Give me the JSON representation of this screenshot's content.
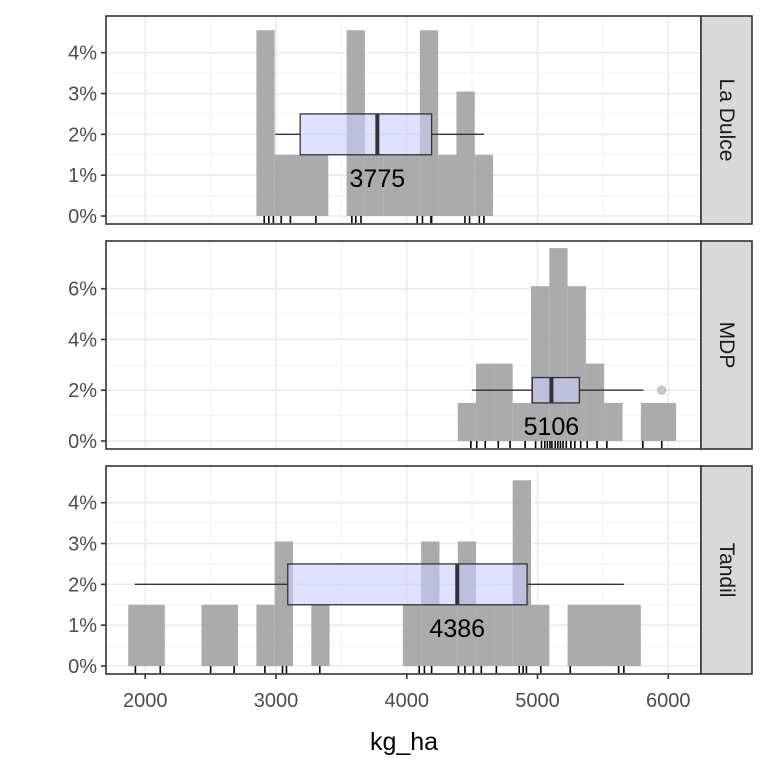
{
  "chart_data": {
    "type": "histogram-boxplot-facets",
    "xlabel": "kg_ha",
    "x_ticks": [
      2000,
      3000,
      4000,
      5000,
      6000
    ],
    "xlim": [
      1700,
      6250
    ],
    "bin_width": 140,
    "grid": true,
    "colors": {
      "bar": "#a6a6a6",
      "box_fill": "#ccccff",
      "box_stroke": "#333333",
      "strip_fill": "#d9d9d9",
      "panel_border": "#333333",
      "grid_major": "#ebebeb",
      "grid_minor": "#f4f4f4"
    },
    "panels": [
      {
        "label": "La Dulce",
        "ylim": [
          0,
          4.85
        ],
        "y_ticks": [
          0,
          1,
          2,
          3,
          4
        ],
        "y_tick_labels": [
          "0%",
          "1%",
          "2%",
          "3%",
          "4%"
        ],
        "bars": [
          {
            "start": 2850,
            "end": 2990,
            "pct": 4.55
          },
          {
            "start": 2990,
            "end": 3400,
            "pct": 1.5
          },
          {
            "start": 3540,
            "end": 3680,
            "pct": 4.55
          },
          {
            "start": 3680,
            "end": 3820,
            "pct": 1.5
          },
          {
            "start": 3820,
            "end": 4100,
            "pct": 1.5
          },
          {
            "start": 4100,
            "end": 4240,
            "pct": 4.55
          },
          {
            "start": 4240,
            "end": 4380,
            "pct": 1.5
          },
          {
            "start": 4380,
            "end": 4520,
            "pct": 3.05
          },
          {
            "start": 4520,
            "end": 4660,
            "pct": 1.5
          }
        ],
        "box": {
          "whisker_low": 2995,
          "q1": 3185,
          "median": 3775,
          "q3": 4190,
          "whisker_high": 4590,
          "outliers": []
        },
        "median_label": "3775",
        "rug": [
          2910,
          2945,
          2980,
          3040,
          3110,
          3305,
          3580,
          3610,
          3650,
          4080,
          4120,
          4185,
          4190,
          4445,
          4480,
          4555,
          4590
        ]
      },
      {
        "label": "MDP",
        "ylim": [
          0,
          7.8
        ],
        "y_ticks": [
          0,
          2,
          4,
          6
        ],
        "y_tick_labels": [
          "0%",
          "2%",
          "4%",
          "6%"
        ],
        "bars": [
          {
            "start": 4390,
            "end": 4530,
            "pct": 1.5
          },
          {
            "start": 4530,
            "end": 4670,
            "pct": 3.05
          },
          {
            "start": 4670,
            "end": 4810,
            "pct": 3.05
          },
          {
            "start": 4810,
            "end": 4950,
            "pct": 1.5
          },
          {
            "start": 4950,
            "end": 5090,
            "pct": 6.1
          },
          {
            "start": 5090,
            "end": 5230,
            "pct": 7.6
          },
          {
            "start": 5230,
            "end": 5370,
            "pct": 6.1
          },
          {
            "start": 5370,
            "end": 5510,
            "pct": 3.05
          },
          {
            "start": 5510,
            "end": 5650,
            "pct": 1.5
          },
          {
            "start": 5790,
            "end": 6060,
            "pct": 1.5
          }
        ],
        "box": {
          "whisker_low": 4500,
          "q1": 4960,
          "median": 5106,
          "q3": 5320,
          "whisker_high": 5810,
          "outliers": [
            5950
          ]
        },
        "median_label": "5106",
        "rug": [
          4490,
          4535,
          4600,
          4700,
          4790,
          4905,
          4985,
          5030,
          5055,
          5075,
          5095,
          5110,
          5135,
          5155,
          5175,
          5195,
          5220,
          5255,
          5285,
          5330,
          5380,
          5455,
          5530,
          5805,
          5950
        ]
      },
      {
        "label": "Tandil",
        "ylim": [
          0,
          4.85
        ],
        "y_ticks": [
          0,
          1,
          2,
          3,
          4
        ],
        "y_tick_labels": [
          "0%",
          "1%",
          "2%",
          "3%",
          "4%"
        ],
        "bars": [
          {
            "start": 1870,
            "end": 2150,
            "pct": 1.5
          },
          {
            "start": 2430,
            "end": 2710,
            "pct": 1.5
          },
          {
            "start": 2850,
            "end": 2990,
            "pct": 1.5
          },
          {
            "start": 2990,
            "end": 3130,
            "pct": 3.05
          },
          {
            "start": 3270,
            "end": 3410,
            "pct": 1.5
          },
          {
            "start": 3970,
            "end": 4110,
            "pct": 1.5
          },
          {
            "start": 4110,
            "end": 4250,
            "pct": 3.05
          },
          {
            "start": 4250,
            "end": 4390,
            "pct": 1.5
          },
          {
            "start": 4390,
            "end": 4530,
            "pct": 3.05
          },
          {
            "start": 4530,
            "end": 4670,
            "pct": 1.5
          },
          {
            "start": 4670,
            "end": 4810,
            "pct": 1.5
          },
          {
            "start": 4810,
            "end": 4950,
            "pct": 4.55
          },
          {
            "start": 4950,
            "end": 5090,
            "pct": 1.5
          },
          {
            "start": 5230,
            "end": 5790,
            "pct": 1.5
          }
        ],
        "box": {
          "whisker_low": 1920,
          "q1": 3090,
          "median": 4386,
          "q3": 4920,
          "whisker_high": 5660,
          "outliers": []
        },
        "median_label": "4386",
        "rug": [
          1925,
          2115,
          2500,
          2680,
          2915,
          3050,
          3080,
          3335,
          4095,
          4135,
          4190,
          4395,
          4445,
          4510,
          4570,
          4685,
          4860,
          4890,
          4915,
          5025,
          5250,
          5620,
          5660
        ]
      }
    ]
  }
}
